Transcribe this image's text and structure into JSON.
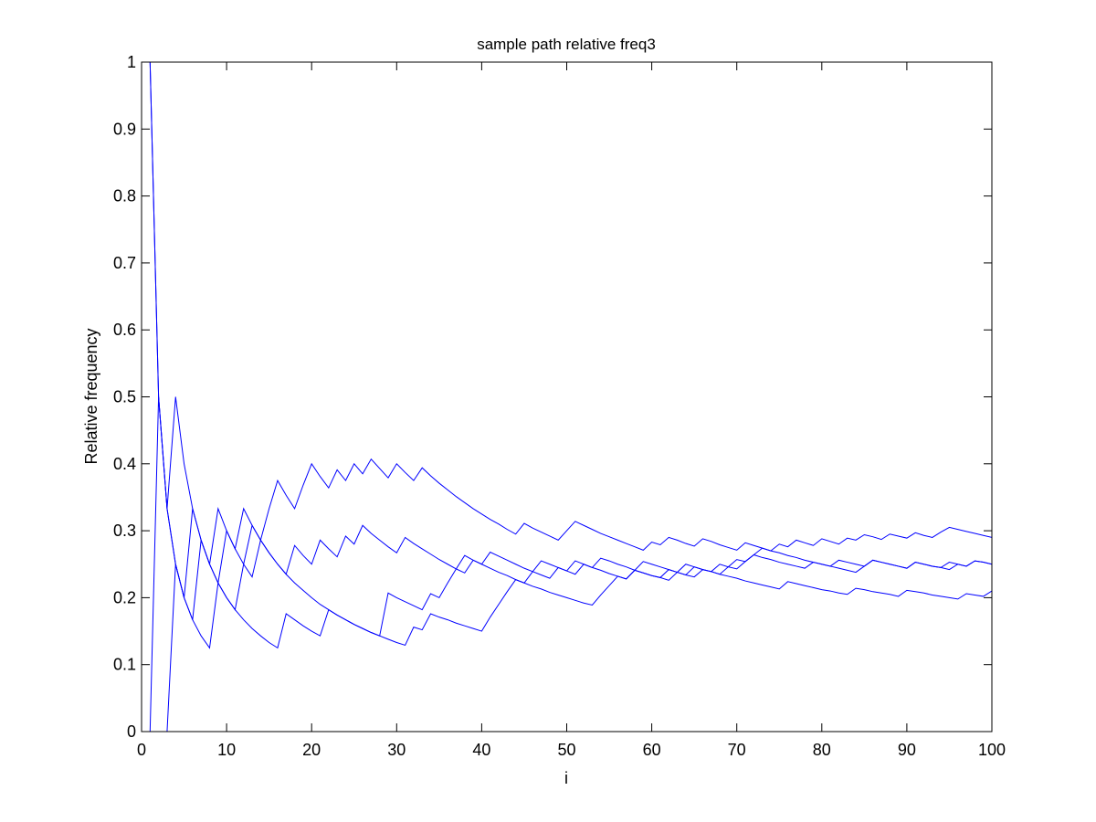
{
  "chart_data": {
    "type": "line",
    "title": "sample path relative freq3",
    "xlabel": "i",
    "ylabel": "Relative frequency",
    "xlim": [
      0,
      100
    ],
    "ylim": [
      0,
      1
    ],
    "xticks": [
      0,
      10,
      20,
      30,
      40,
      50,
      60,
      70,
      80,
      90,
      100
    ],
    "yticks": [
      0,
      0.1,
      0.2,
      0.3,
      0.4,
      0.5,
      0.6,
      0.7,
      0.8,
      0.9,
      1
    ],
    "grid": false,
    "line_color": "#0000ff",
    "series": [
      {
        "x": [
          1,
          2,
          3,
          4,
          5,
          6,
          7,
          8,
          9,
          10,
          11,
          12,
          13,
          14,
          15,
          16,
          17,
          18,
          19,
          20,
          21,
          22,
          23,
          24,
          25,
          26,
          27,
          28,
          29,
          30,
          31,
          32,
          33,
          34,
          35,
          36,
          37,
          38,
          39,
          40,
          41,
          42,
          43,
          44,
          45,
          46,
          47,
          48,
          49,
          50,
          51,
          52,
          53,
          54,
          55,
          56,
          57,
          58,
          59,
          60,
          61,
          62,
          63,
          64,
          65,
          66,
          67,
          68,
          69,
          70,
          71,
          72,
          73,
          74,
          75,
          76,
          77,
          78,
          79,
          80,
          81,
          82,
          83,
          84,
          85,
          86,
          87,
          88,
          89,
          90,
          91,
          92,
          93,
          94,
          95,
          96,
          97,
          98,
          99,
          100
        ],
        "y": [
          1,
          0.5,
          0.333,
          0.25,
          0.2,
          0.167,
          0.143,
          0.125,
          0.222,
          0.2,
          0.182,
          0.25,
          0.308,
          0.286,
          0.333,
          0.375,
          0.353,
          0.333,
          0.368,
          0.4,
          0.381,
          0.364,
          0.391,
          0.375,
          0.4,
          0.385,
          0.407,
          0.393,
          0.379,
          0.4,
          0.387,
          0.375,
          0.394,
          0.382,
          0.371,
          0.361,
          0.351,
          0.342,
          0.333,
          0.325,
          0.317,
          0.31,
          0.302,
          0.295,
          0.311,
          0.304,
          0.298,
          0.292,
          0.286,
          0.3,
          0.314,
          0.308,
          0.302,
          0.296,
          0.291,
          0.286,
          0.281,
          0.276,
          0.271,
          0.283,
          0.279,
          0.29,
          0.286,
          0.281,
          0.277,
          0.288,
          0.284,
          0.279,
          0.275,
          0.271,
          0.282,
          0.278,
          0.274,
          0.27,
          0.267,
          0.263,
          0.26,
          0.256,
          0.253,
          0.25,
          0.247,
          0.256,
          0.253,
          0.25,
          0.247,
          0.256,
          0.253,
          0.25,
          0.247,
          0.244,
          0.253,
          0.25,
          0.247,
          0.245,
          0.242,
          0.25,
          0.247,
          0.255,
          0.253,
          0.25
        ]
      },
      {
        "x": [
          1,
          2,
          3,
          4,
          5,
          6,
          7,
          8,
          9,
          10,
          11,
          12,
          13,
          14,
          15,
          16,
          17,
          18,
          19,
          20,
          21,
          22,
          23,
          24,
          25,
          26,
          27,
          28,
          29,
          30,
          31,
          32,
          33,
          34,
          35,
          36,
          37,
          38,
          39,
          40,
          41,
          42,
          43,
          44,
          45,
          46,
          47,
          48,
          49,
          50,
          51,
          52,
          53,
          54,
          55,
          56,
          57,
          58,
          59,
          60,
          61,
          62,
          63,
          64,
          65,
          66,
          67,
          68,
          69,
          70,
          71,
          72,
          73,
          74,
          75,
          76,
          77,
          78,
          79,
          80,
          81,
          82,
          83,
          84,
          85,
          86,
          87,
          88,
          89,
          90,
          91,
          92,
          93,
          94,
          95,
          96,
          97,
          98,
          99,
          100
        ],
        "y": [
          1,
          0.5,
          0.333,
          0.5,
          0.4,
          0.333,
          0.286,
          0.25,
          0.222,
          0.2,
          0.182,
          0.167,
          0.154,
          0.143,
          0.133,
          0.125,
          0.176,
          0.167,
          0.158,
          0.15,
          0.143,
          0.182,
          0.174,
          0.167,
          0.16,
          0.154,
          0.148,
          0.143,
          0.138,
          0.133,
          0.129,
          0.156,
          0.152,
          0.176,
          0.171,
          0.167,
          0.162,
          0.158,
          0.154,
          0.15,
          0.171,
          0.19,
          0.209,
          0.227,
          0.222,
          0.239,
          0.255,
          0.25,
          0.245,
          0.24,
          0.255,
          0.25,
          0.245,
          0.259,
          0.255,
          0.25,
          0.246,
          0.241,
          0.237,
          0.233,
          0.23,
          0.226,
          0.238,
          0.234,
          0.246,
          0.242,
          0.239,
          0.235,
          0.232,
          0.229,
          0.225,
          0.222,
          0.219,
          0.216,
          0.213,
          0.224,
          0.221,
          0.218,
          0.215,
          0.212,
          0.21,
          0.207,
          0.205,
          0.214,
          0.212,
          0.209,
          0.207,
          0.205,
          0.202,
          0.211,
          0.209,
          0.207,
          0.204,
          0.202,
          0.2,
          0.198,
          0.206,
          0.204,
          0.202,
          0.21
        ]
      },
      {
        "x": [
          1,
          2,
          3,
          4,
          5,
          6,
          7,
          8,
          9,
          10,
          11,
          12,
          13,
          14,
          15,
          16,
          17,
          18,
          19,
          20,
          21,
          22,
          23,
          24,
          25,
          26,
          27,
          28,
          29,
          30,
          31,
          32,
          33,
          34,
          35,
          36,
          37,
          38,
          39,
          40,
          41,
          42,
          43,
          44,
          45,
          46,
          47,
          48,
          49,
          50,
          51,
          52,
          53,
          54,
          55,
          56,
          57,
          58,
          59,
          60,
          61,
          62,
          63,
          64,
          65,
          66,
          67,
          68,
          69,
          70,
          71,
          72,
          73,
          74,
          75,
          76,
          77,
          78,
          79,
          80,
          81,
          82,
          83,
          84,
          85,
          86,
          87,
          88,
          89,
          90,
          91,
          92,
          93,
          94,
          95,
          96,
          97,
          98,
          99,
          100
        ],
        "y": [
          0,
          0.5,
          0.333,
          0.25,
          0.2,
          0.333,
          0.286,
          0.25,
          0.333,
          0.3,
          0.273,
          0.333,
          0.308,
          0.286,
          0.267,
          0.25,
          0.235,
          0.278,
          0.263,
          0.25,
          0.286,
          0.273,
          0.261,
          0.292,
          0.28,
          0.308,
          0.296,
          0.286,
          0.276,
          0.267,
          0.29,
          0.281,
          0.273,
          0.265,
          0.257,
          0.25,
          0.243,
          0.237,
          0.256,
          0.25,
          0.244,
          0.238,
          0.233,
          0.227,
          0.222,
          0.217,
          0.213,
          0.208,
          0.204,
          0.2,
          0.196,
          0.192,
          0.189,
          0.204,
          0.218,
          0.232,
          0.228,
          0.241,
          0.254,
          0.25,
          0.246,
          0.242,
          0.238,
          0.25,
          0.246,
          0.242,
          0.239,
          0.235,
          0.246,
          0.243,
          0.254,
          0.264,
          0.274,
          0.27,
          0.28,
          0.276,
          0.286,
          0.282,
          0.278,
          0.288,
          0.284,
          0.28,
          0.289,
          0.286,
          0.294,
          0.291,
          0.287,
          0.295,
          0.292,
          0.289,
          0.297,
          0.293,
          0.29,
          0.298,
          0.305,
          0.302,
          0.299,
          0.296,
          0.293,
          0.29
        ]
      },
      {
        "x": [
          1,
          2,
          3,
          4,
          5,
          6,
          7,
          8,
          9,
          10,
          11,
          12,
          13,
          14,
          15,
          16,
          17,
          18,
          19,
          20,
          21,
          22,
          23,
          24,
          25,
          26,
          27,
          28,
          29,
          30,
          31,
          32,
          33,
          34,
          35,
          36,
          37,
          38,
          39,
          40,
          41,
          42,
          43,
          44,
          45,
          46,
          47,
          48,
          49,
          50,
          51,
          52,
          53,
          54,
          55,
          56,
          57,
          58,
          59,
          60,
          61,
          62,
          63,
          64,
          65,
          66,
          67,
          68,
          69,
          70,
          71,
          72,
          73,
          74,
          75,
          76,
          77,
          78,
          79,
          80,
          81,
          82,
          83,
          84,
          85,
          86,
          87,
          88,
          89,
          90,
          91,
          92,
          93,
          94,
          95,
          96,
          97,
          98,
          99,
          100
        ],
        "y": [
          0,
          0,
          0,
          0.25,
          0.2,
          0.167,
          0.286,
          0.25,
          0.222,
          0.3,
          0.273,
          0.25,
          0.231,
          0.286,
          0.267,
          0.25,
          0.235,
          0.222,
          0.211,
          0.2,
          0.19,
          0.182,
          0.174,
          0.167,
          0.16,
          0.154,
          0.148,
          0.143,
          0.207,
          0.2,
          0.194,
          0.188,
          0.182,
          0.206,
          0.2,
          0.222,
          0.243,
          0.263,
          0.256,
          0.25,
          0.268,
          0.262,
          0.256,
          0.25,
          0.244,
          0.239,
          0.234,
          0.229,
          0.245,
          0.24,
          0.235,
          0.25,
          0.245,
          0.241,
          0.236,
          0.232,
          0.228,
          0.241,
          0.237,
          0.233,
          0.23,
          0.242,
          0.238,
          0.234,
          0.231,
          0.242,
          0.239,
          0.25,
          0.246,
          0.257,
          0.254,
          0.264,
          0.26,
          0.257,
          0.253,
          0.25,
          0.247,
          0.244,
          0.253,
          0.25,
          0.247,
          0.244,
          0.241,
          0.238,
          0.247,
          0.256,
          0.253,
          0.25,
          0.247,
          0.244,
          0.253,
          0.25,
          0.247,
          0.245,
          0.253,
          0.25,
          0.247,
          0.255,
          0.253,
          0.25
        ]
      }
    ]
  }
}
